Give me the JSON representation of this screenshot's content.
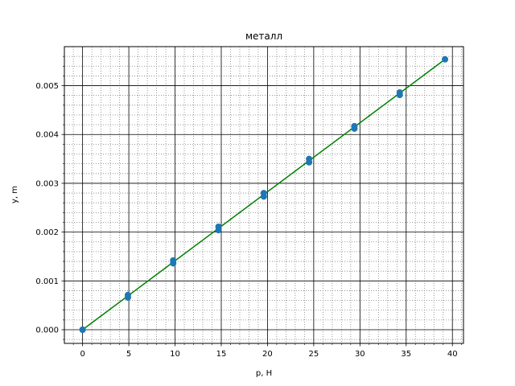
{
  "chart_data": {
    "type": "scatter",
    "title": "металл",
    "xlabel": "p, Н",
    "ylabel": "y, m",
    "xlim": [
      -1.97,
      41.2
    ],
    "ylim": [
      -0.00028,
      0.0058
    ],
    "x_ticks": [
      0,
      5,
      10,
      15,
      20,
      25,
      30,
      35,
      40
    ],
    "x_tick_labels": [
      "0",
      "5",
      "10",
      "15",
      "20",
      "25",
      "30",
      "35",
      "40"
    ],
    "y_ticks": [
      0,
      0.001,
      0.002,
      0.003,
      0.004,
      0.005
    ],
    "y_tick_labels": [
      "0.000",
      "0.001",
      "0.002",
      "0.003",
      "0.004",
      "0.005"
    ],
    "grid": {
      "major": true,
      "minor": true
    },
    "colors": {
      "points": "#1f77b4",
      "fit_line": "#008000",
      "major_grid": "#000000",
      "minor_grid": "#808080"
    },
    "series": [
      {
        "kind": "points",
        "x": [
          0,
          0,
          4.9,
          4.9,
          9.8,
          9.8,
          14.7,
          14.7,
          19.6,
          19.6,
          24.5,
          24.5,
          29.4,
          29.4,
          34.3,
          34.3,
          39.2
        ],
        "y": [
          0.0,
          0.0,
          0.00066,
          0.00071,
          0.00136,
          0.00142,
          0.00204,
          0.00211,
          0.00273,
          0.0028,
          0.00343,
          0.0035,
          0.00412,
          0.00417,
          0.00481,
          0.00486,
          0.00554
        ]
      },
      {
        "kind": "fit-line",
        "x": [
          0,
          39.2
        ],
        "y": [
          0.0,
          0.00554
        ]
      }
    ]
  }
}
